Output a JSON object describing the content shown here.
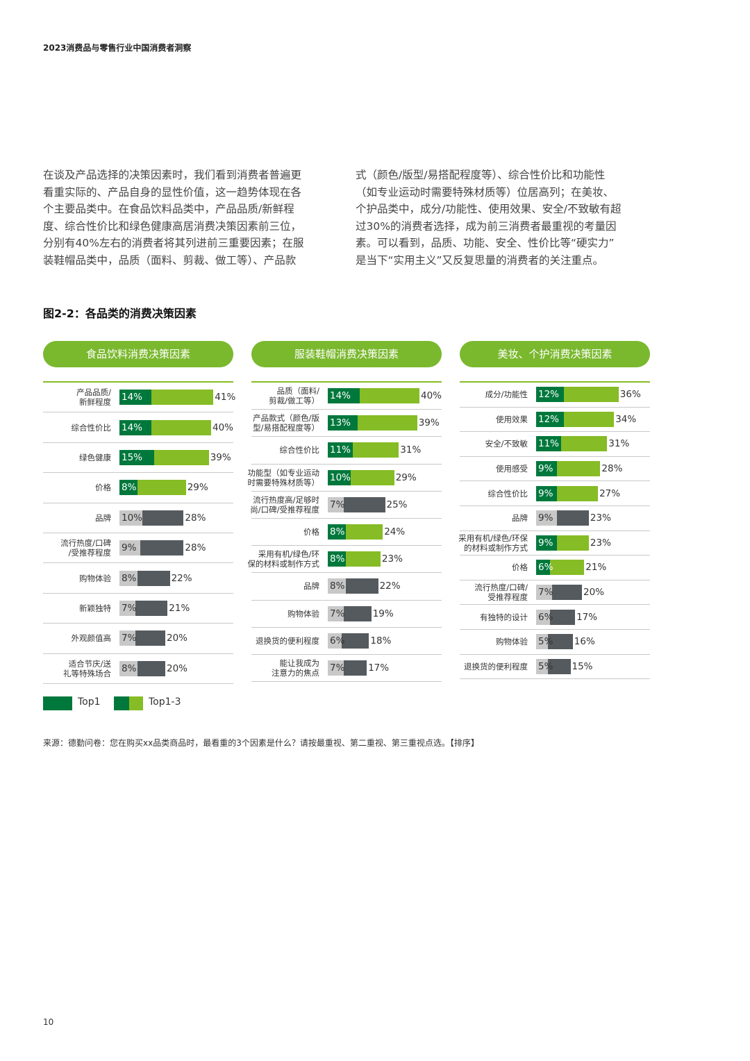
{
  "header": "2023消费品与零售行业中国消费者洞察",
  "intro_left": [
    "在谈及产品选择的决策因素时，我们看到消费者普遍更",
    "看重实际的、产品自身的显性价值，这一趋势体现在各",
    "个主要品类中。在食品饮料品类中，产品品质/新鲜程",
    "度、综合性价比和绿色健康高居消费决策因素前三位，",
    "分别有40%左右的消费者将其列进前三重要因素；在服",
    "装鞋帽品类中，品质（面料、剪裁、做工等）、产品款"
  ],
  "intro_right": [
    "式（颜色/版型/易搭配程度等）、综合性价比和功能性",
    "（如专业运动时需要特殊材质等）位居高列；在美妆、",
    "个护品类中，成分/功能性、使用效果、安全/不致敏有超",
    "过30%的消费者选择，成为前三消费者最重视的考量因",
    "素。可以看到，品质、功能、安全、性价比等“硬实力”",
    "是当下“实用主义”又反复思量的消费者的关注重点。"
  ],
  "figure_title": "图2-2：各品类的消费决策因素",
  "colors": {
    "top1": "#00783c",
    "top13": "#86bc25",
    "grey_top1": "#c8c8c8",
    "grey_top13": "#555a5e",
    "panel_head": "#7ab82e"
  },
  "chart_data": [
    {
      "type": "bar",
      "title": "食品饮料消费决策因素",
      "categories": [
        "产品品质/新鲜程度",
        "综合性价比",
        "绿色健康",
        "价格",
        "品牌",
        "流行热度/口碑/受推荐程度",
        "购物体验",
        "新颖独特",
        "外观颜值高",
        "适合节庆/送礼等特殊场合"
      ],
      "label_lines": [
        [
          "产品品质/",
          "新鲜程度"
        ],
        [
          "综合性价比"
        ],
        [
          "绿色健康"
        ],
        [
          "价格"
        ],
        [
          "品牌"
        ],
        [
          "流行热度/口碑",
          "/受推荐程度"
        ],
        [
          "购物体验"
        ],
        [
          "新颖独特"
        ],
        [
          "外观颜值高"
        ],
        [
          "适合节庆/送",
          "礼等特殊场合"
        ]
      ],
      "series": [
        {
          "name": "Top1",
          "values": [
            14,
            14,
            15,
            8,
            10,
            9,
            8,
            7,
            7,
            8
          ]
        },
        {
          "name": "Top1-3",
          "values": [
            41,
            40,
            39,
            29,
            28,
            28,
            22,
            21,
            20,
            20
          ]
        }
      ],
      "highlight_count": 4
    },
    {
      "type": "bar",
      "title": "服装鞋帽消费决策因素",
      "categories": [
        "品质（面料/剪裁/做工等）",
        "产品款式（颜色/版型/易搭配程度等）",
        "综合性价比",
        "功能型（如专业运动时需要特殊材质等）",
        "流行热度高/足够时尚/口碑/受推荐程度",
        "价格",
        "采用有机/绿色/环保的材料或制作方式",
        "品牌",
        "购物体验",
        "退换货的便利程度",
        "能让我成为注意力的焦点"
      ],
      "label_lines": [
        [
          "品质（面料/",
          "剪裁/做工等）"
        ],
        [
          "产品款式（颜色/版",
          "型/易搭配程度等）"
        ],
        [
          "综合性价比"
        ],
        [
          "功能型（如专业运动",
          "时需要特殊材质等）"
        ],
        [
          "流行热度高/足够时",
          "尚/口碑/受推荐程度"
        ],
        [
          "价格"
        ],
        [
          "采用有机/绿色/环",
          "保的材料或制作方式"
        ],
        [
          "品牌"
        ],
        [
          "购物体验"
        ],
        [
          "退换货的便利程度"
        ],
        [
          "能让我成为",
          "注意力的焦点"
        ]
      ],
      "series": [
        {
          "name": "Top1",
          "values": [
            14,
            13,
            11,
            10,
            7,
            8,
            8,
            8,
            7,
            6,
            7
          ]
        },
        {
          "name": "Top1-3",
          "values": [
            40,
            39,
            31,
            29,
            25,
            24,
            23,
            22,
            19,
            18,
            17
          ]
        }
      ],
      "highlight_flags": [
        true,
        true,
        true,
        true,
        false,
        true,
        true,
        false,
        false,
        false,
        false
      ]
    },
    {
      "type": "bar",
      "title": "美妆、个护消费决策因素",
      "categories": [
        "成分/功能性",
        "使用效果",
        "安全/不致敏",
        "使用感受",
        "综合性价比",
        "品牌",
        "采用有机/绿色/环保的材料或制作方式",
        "价格",
        "流行热度/口碑/受推荐程度",
        "有独特的设计",
        "购物体验",
        "退换货的便利程度"
      ],
      "label_lines": [
        [
          "成分/功能性"
        ],
        [
          "使用效果"
        ],
        [
          "安全/不致敏"
        ],
        [
          "使用感受"
        ],
        [
          "综合性价比"
        ],
        [
          "品牌"
        ],
        [
          "采用有机/绿色/环保",
          "的材料或制作方式"
        ],
        [
          "价格"
        ],
        [
          "流行热度/口碑/",
          "受推荐程度"
        ],
        [
          "有独特的设计"
        ],
        [
          "购物体验"
        ],
        [
          "退换货的便利程度"
        ]
      ],
      "series": [
        {
          "name": "Top1",
          "values": [
            12,
            12,
            11,
            9,
            9,
            9,
            9,
            6,
            7,
            6,
            5,
            5
          ]
        },
        {
          "name": "Top1-3",
          "values": [
            36,
            34,
            31,
            28,
            27,
            23,
            23,
            21,
            20,
            17,
            16,
            15
          ]
        }
      ],
      "highlight_flags": [
        true,
        true,
        true,
        true,
        true,
        false,
        true,
        true,
        false,
        false,
        false,
        false
      ]
    }
  ],
  "legend": {
    "top1": "Top1",
    "top13": "Top1-3"
  },
  "source": "来源：德勤问卷：您在购买xx品类商品时，最看重的3个因素是什么？请按最重视、第二重视、第三重视点选。【排序】",
  "page_number": "10"
}
